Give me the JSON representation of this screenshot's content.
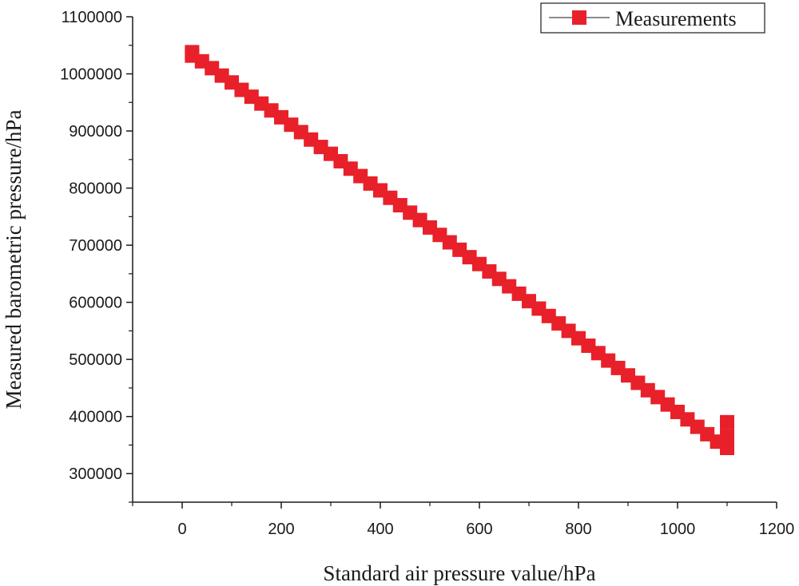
{
  "chart_data": {
    "type": "scatter",
    "title": "",
    "xlabel": "Standard air pressure value/hPa",
    "ylabel": "Measured barometric pressure/hPa",
    "xlim": [
      -100,
      1200
    ],
    "ylim": [
      250000,
      1100000
    ],
    "xticks": [
      0,
      200,
      400,
      600,
      800,
      1000,
      1200
    ],
    "xtick_labels": [
      "0",
      "200",
      "400",
      "600",
      "800",
      "1000",
      "1200"
    ],
    "yticks": [
      300000,
      400000,
      500000,
      600000,
      700000,
      800000,
      900000,
      1000000,
      1100000
    ],
    "ytick_labels": [
      "300000",
      "400000",
      "500000",
      "600000",
      "700000",
      "800000",
      "900000",
      "1000000",
      "1100000"
    ],
    "grid": false,
    "legend": {
      "position": "top-right",
      "entries": [
        "Measurements"
      ]
    },
    "series": [
      {
        "name": "Measurements",
        "color": "#e8202a",
        "line_color": "#1a1a1a",
        "marker": "square",
        "x": [
          20,
          20,
          40,
          60,
          80,
          100,
          120,
          140,
          160,
          180,
          200,
          220,
          240,
          260,
          280,
          300,
          320,
          340,
          360,
          380,
          400,
          420,
          440,
          460,
          480,
          500,
          520,
          540,
          560,
          580,
          600,
          620,
          640,
          660,
          680,
          700,
          720,
          740,
          760,
          780,
          800,
          820,
          840,
          860,
          880,
          900,
          920,
          940,
          960,
          980,
          1000,
          1020,
          1040,
          1060,
          1080,
          1100,
          1100,
          1100
        ],
        "y": [
          1038000,
          1032000,
          1022000,
          1010000,
          997000,
          985000,
          972000,
          960000,
          948000,
          936000,
          924000,
          911000,
          898000,
          885000,
          872000,
          860000,
          847000,
          834000,
          821000,
          808000,
          796000,
          783000,
          770000,
          757000,
          744000,
          731000,
          718000,
          705000,
          692000,
          679000,
          667000,
          654000,
          641000,
          628000,
          615000,
          602000,
          589000,
          576000,
          563000,
          550000,
          537000,
          524000,
          511000,
          498000,
          485000,
          472000,
          459000,
          446000,
          434000,
          421000,
          408000,
          395000,
          382000,
          369000,
          356000,
          390000,
          365000,
          345000
        ]
      }
    ]
  }
}
